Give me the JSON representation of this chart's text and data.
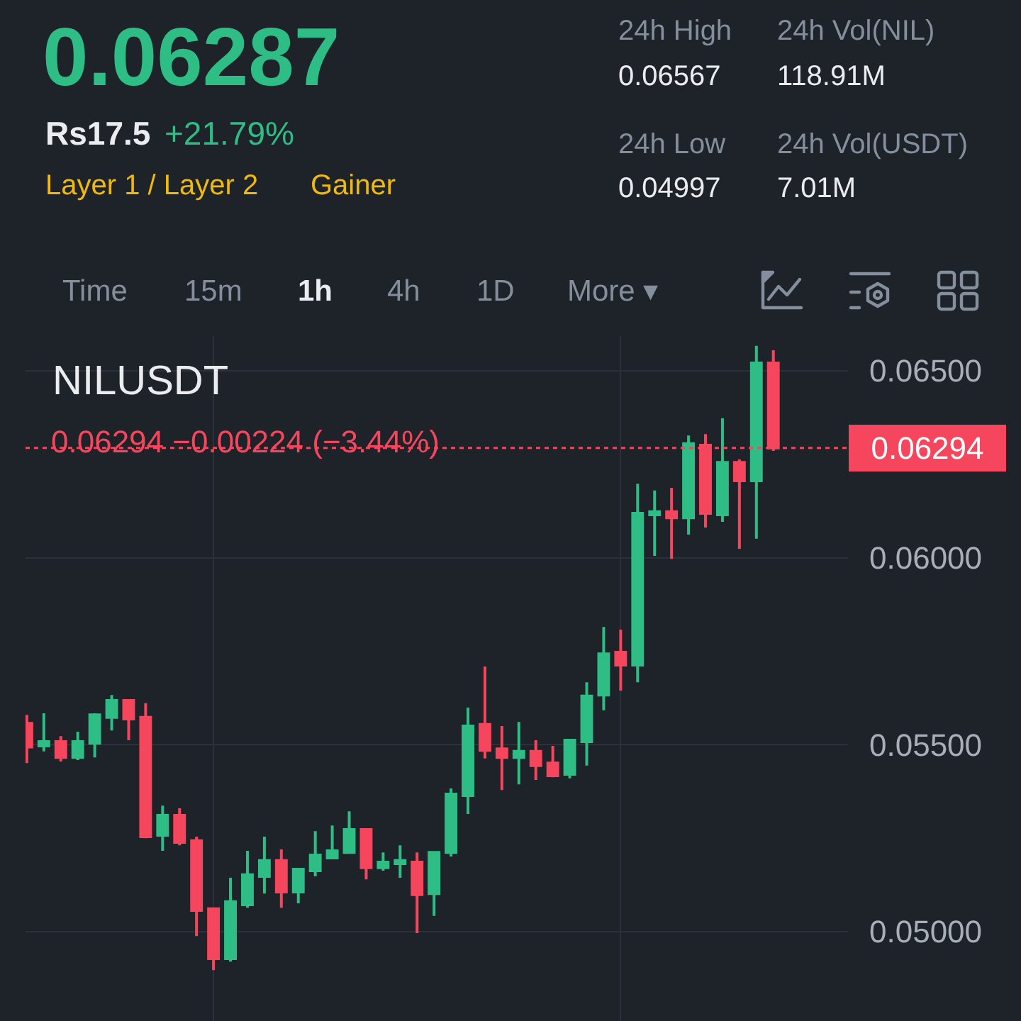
{
  "chart_data": {
    "type": "candlestick",
    "title": "NILUSDT",
    "annotations": [
      "0.06287",
      "Rs17.5",
      "+21.79%",
      "Layer 1 / Layer 2",
      "Gainer",
      "24h High",
      "0.06567",
      "24h Low",
      "0.04997",
      "24h Vol(NIL)",
      "118.91M",
      "24h Vol(USDT)",
      "7.01M",
      "Time",
      "15m",
      "1h",
      "4h",
      "1D",
      "More ▾",
      "0.06294 −0.00224 (−3.44%)"
    ],
    "categories": [
      null,
      null,
      null,
      null,
      null,
      null,
      null,
      null,
      null,
      null,
      null,
      null,
      null,
      null,
      null,
      null,
      null,
      null,
      null,
      null,
      null,
      null,
      null,
      null,
      null,
      null,
      null,
      null,
      null,
      null,
      null,
      null,
      null,
      null,
      null,
      null,
      null,
      null,
      null,
      null,
      null,
      null,
      null,
      null,
      null
    ],
    "ohlc": [
      [
        0.05557,
        0.0558,
        0.05451,
        0.05494
      ],
      [
        0.05497,
        0.05584,
        0.05482,
        0.05508
      ],
      [
        0.05508,
        0.05523,
        0.05455,
        0.05466
      ],
      [
        0.05466,
        0.05535,
        0.05459,
        0.05508
      ],
      [
        0.05504,
        0.05584,
        0.05466,
        0.0558
      ],
      [
        0.05573,
        0.05633,
        0.05538,
        0.05618
      ],
      [
        0.05618,
        0.05618,
        0.05512,
        0.05569
      ],
      [
        0.05573,
        0.05611,
        0.0525,
        0.05254
      ],
      [
        0.05258,
        0.05337,
        0.05216,
        0.05311
      ],
      [
        0.05311,
        0.0533,
        0.05231,
        0.05239
      ],
      [
        0.05243,
        0.05254,
        0.04988,
        0.05057
      ],
      [
        0.05061,
        0.05064,
        0.04897,
        0.04928
      ],
      [
        0.04928,
        0.05144,
        0.0492,
        0.0508
      ],
      [
        0.05072,
        0.05216,
        0.05064,
        0.05152
      ],
      [
        0.05148,
        0.05254,
        0.05102,
        0.0519
      ],
      [
        0.0519,
        0.0522,
        0.05064,
        0.05106
      ],
      [
        0.05106,
        0.05167,
        0.05076,
        0.05167
      ],
      [
        0.05163,
        0.05269,
        0.05148,
        0.05205
      ],
      [
        0.05197,
        0.05284,
        0.05197,
        0.05216
      ],
      [
        0.05212,
        0.05322,
        0.05212,
        0.05273
      ],
      [
        0.05273,
        0.05277,
        0.0514,
        0.05171
      ],
      [
        0.05171,
        0.05212,
        0.05163,
        0.05186
      ],
      [
        0.05182,
        0.05231,
        0.05144,
        0.0519
      ],
      [
        0.05186,
        0.05212,
        0.04996,
        0.05099
      ],
      [
        0.05102,
        0.05212,
        0.05042,
        0.05212
      ],
      [
        0.05212,
        0.05383,
        0.05201,
        0.05368
      ],
      [
        0.05364,
        0.05599,
        0.05315,
        0.0555
      ],
      [
        0.05554,
        0.05709,
        0.05463,
        0.05485
      ],
      [
        0.05489,
        0.0555,
        0.05379,
        0.05466
      ],
      [
        0.05466,
        0.05561,
        0.05394,
        0.05482
      ],
      [
        0.05482,
        0.05512,
        0.05406,
        0.05444
      ],
      [
        0.05451,
        0.05497,
        0.05413,
        0.05417
      ],
      [
        0.05421,
        0.05516,
        0.0541,
        0.05512
      ],
      [
        0.05508,
        0.05667,
        0.05444,
        0.0563
      ],
      [
        0.05633,
        0.05815,
        0.05592,
        0.05743
      ],
      [
        0.05747,
        0.05808,
        0.05645,
        0.05713
      ],
      [
        0.05713,
        0.06198,
        0.05667,
        0.06119
      ],
      [
        0.06115,
        0.0618,
        0.06005,
        0.06123
      ],
      [
        0.06123,
        0.06187,
        0.05997,
        0.06107
      ],
      [
        0.06107,
        0.06327,
        0.06062,
        0.06305
      ],
      [
        0.06301,
        0.06331,
        0.06081,
        0.06119
      ],
      [
        0.06115,
        0.06373,
        0.06096,
        0.06255
      ],
      [
        0.06255,
        0.06263,
        0.06024,
        0.06206
      ],
      [
        0.06206,
        0.06567,
        0.06051,
        0.06521
      ],
      [
        0.06521,
        0.06555,
        0.06286,
        0.06294
      ]
    ],
    "colors": [
      "#f6465d",
      "#2ebd85",
      "#f6465d",
      "#2ebd85",
      "#2ebd85",
      "#2ebd85",
      "#f6465d",
      "#f6465d",
      "#2ebd85",
      "#f6465d",
      "#f6465d",
      "#f6465d",
      "#2ebd85",
      "#2ebd85",
      "#2ebd85",
      "#f6465d",
      "#2ebd85",
      "#2ebd85",
      "#2ebd85",
      "#2ebd85",
      "#f6465d",
      "#2ebd85",
      "#2ebd85",
      "#f6465d",
      "#2ebd85",
      "#2ebd85",
      "#2ebd85",
      "#f6465d",
      "#f6465d",
      "#2ebd85",
      "#f6465d",
      "#f6465d",
      "#2ebd85",
      "#2ebd85",
      "#2ebd85",
      "#f6465d",
      "#2ebd85",
      "#2ebd85",
      "#f6465d",
      "#2ebd85",
      "#f6465d",
      "#2ebd85",
      "#f6465d",
      "#2ebd85",
      "#f6465d"
    ],
    "ylim": [
      0.04761,
      0.06593
    ],
    "yticks": [
      {
        "value": 0.05,
        "label": "0.05000"
      },
      {
        "value": 0.055,
        "label": "0.05500"
      },
      {
        "value": 0.06,
        "label": "0.06000"
      },
      {
        "value": 0.065,
        "label": "0.06500"
      }
    ],
    "grid": true,
    "tick_labels": "y",
    "ref_lines": [
      {
        "axis": "y",
        "value": 0.06294,
        "label": "0.06294",
        "color": "#f6465d",
        "line_style": "dotted"
      }
    ]
  }
}
